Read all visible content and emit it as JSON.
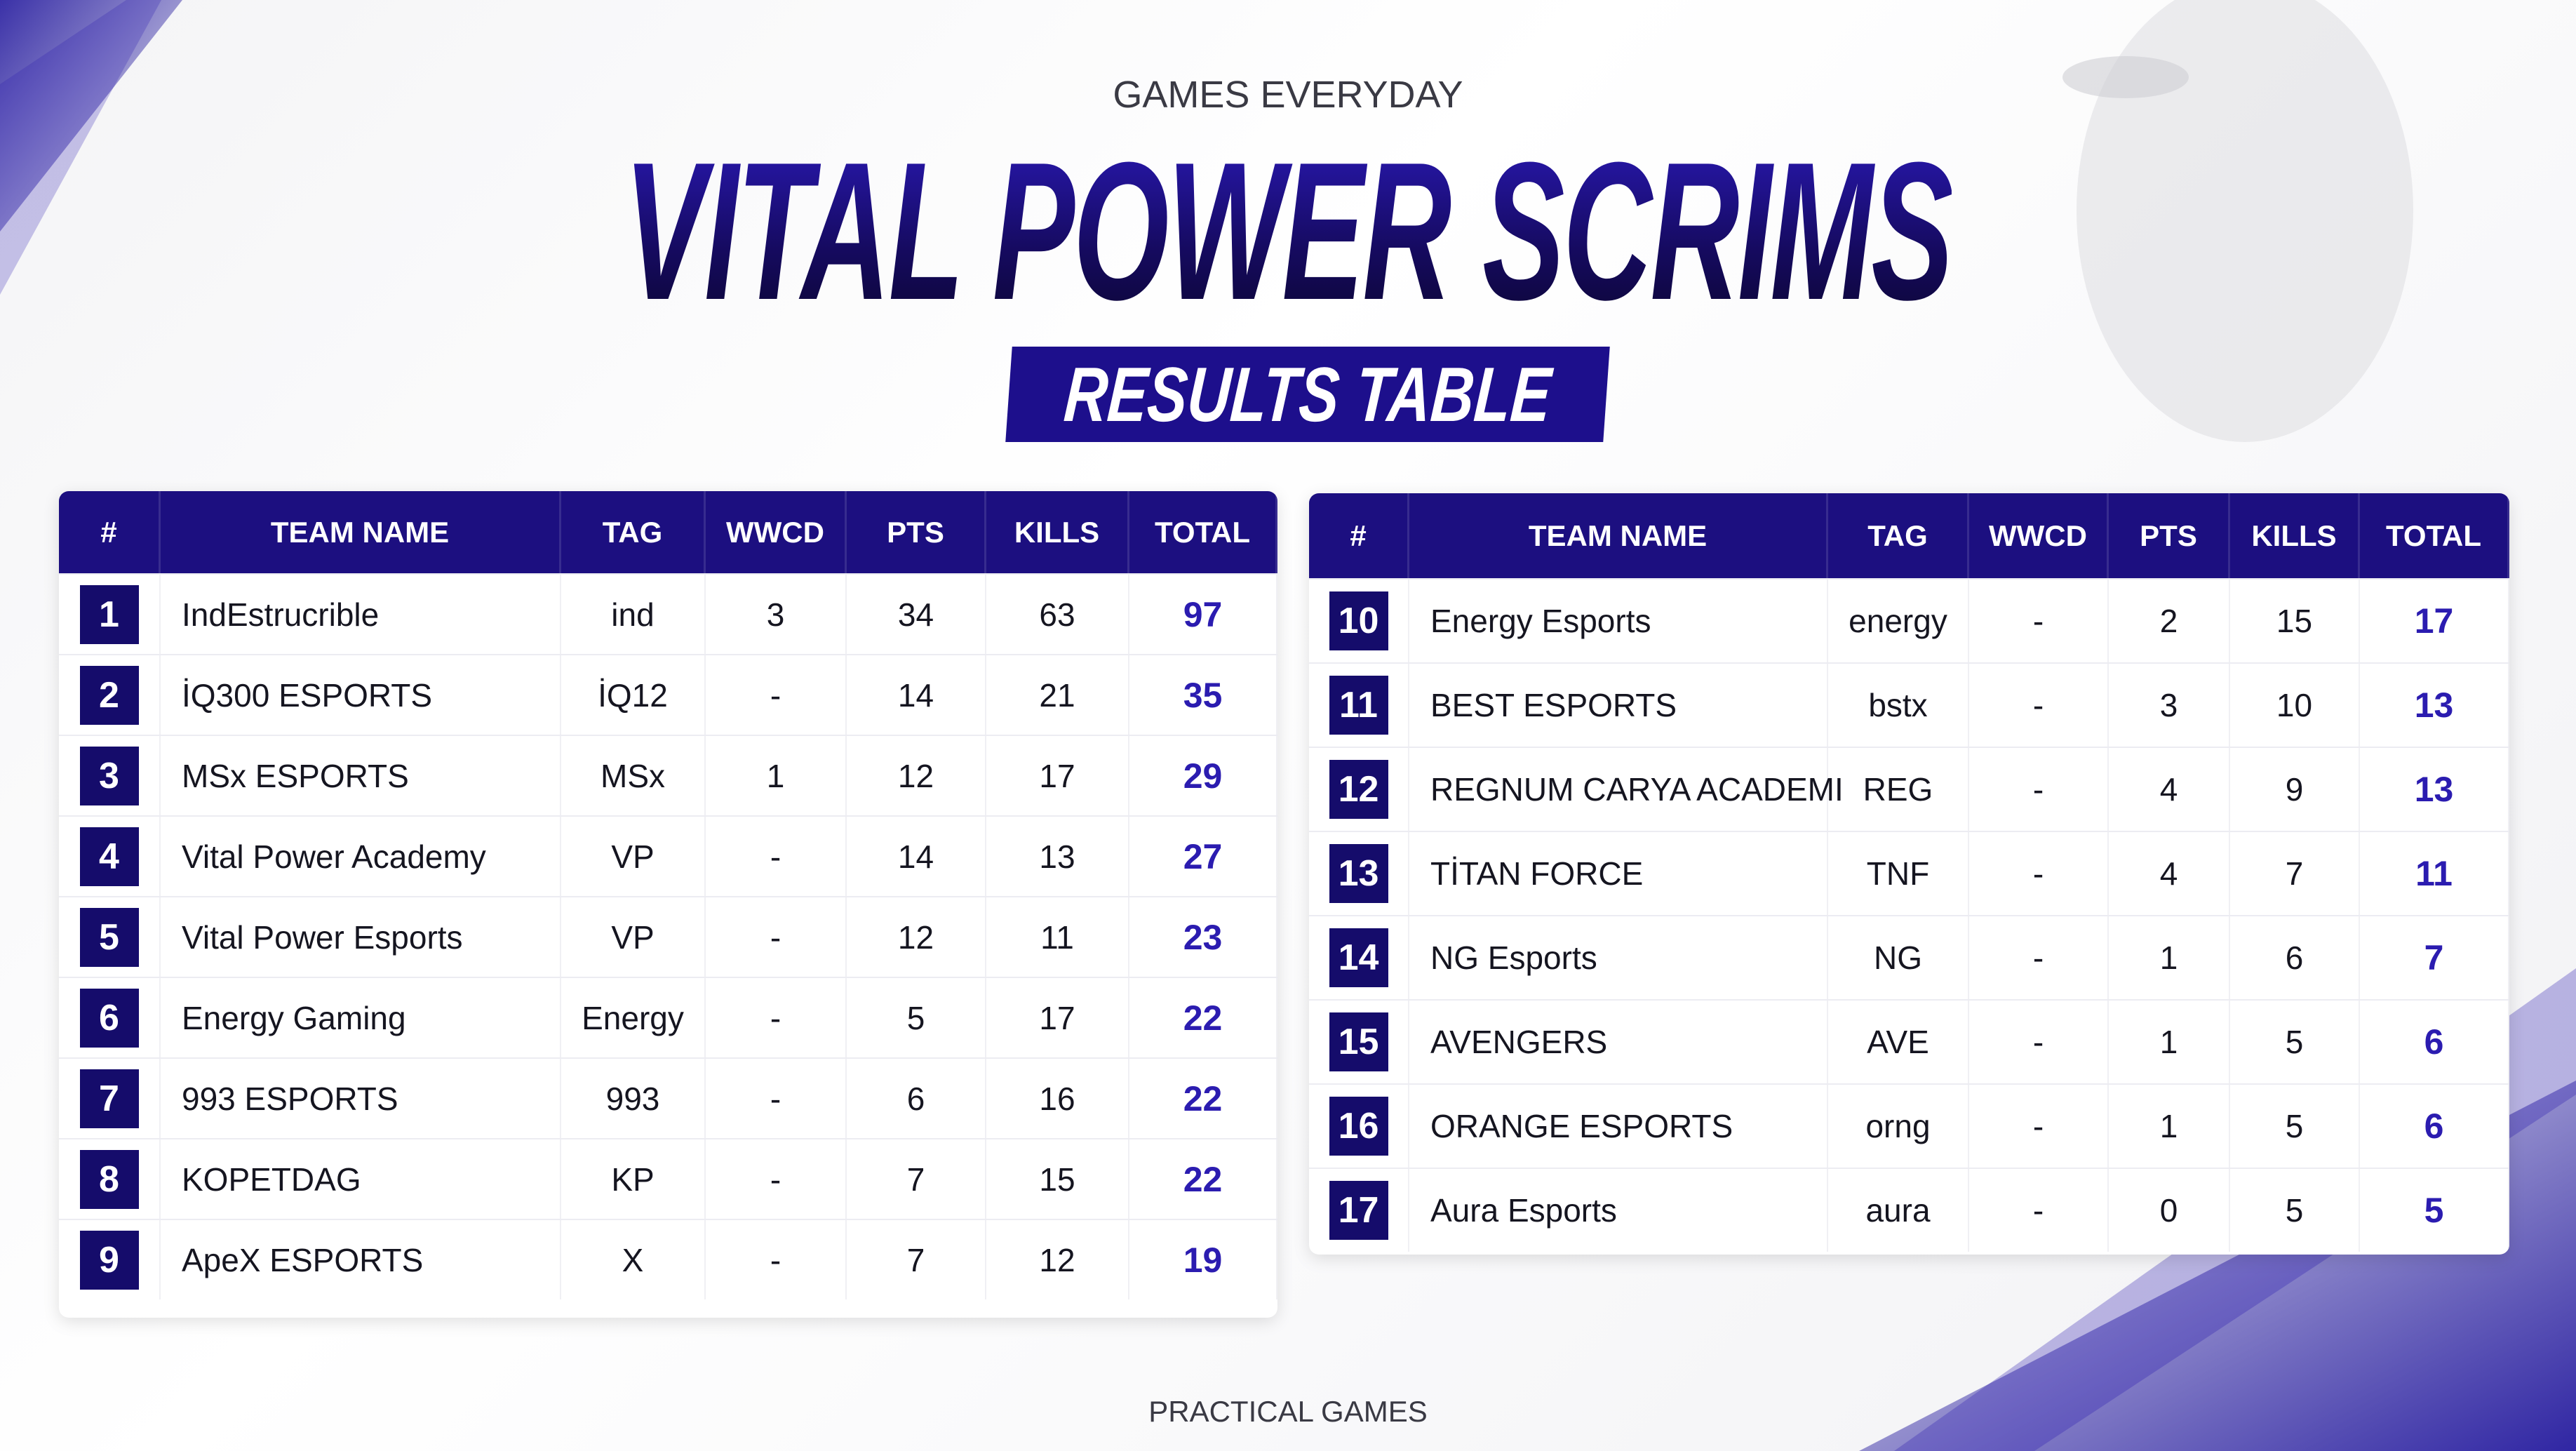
{
  "header": {
    "subtitle": "GAMES EVERYDAY",
    "title": "VITAL POWER SCRIMS",
    "badge": "RESULTS TABLE"
  },
  "tables": [
    {
      "columns": [
        "#",
        "TEAM NAME",
        "TAG",
        "WWCD",
        "PTS",
        "KILLS",
        "TOTAL"
      ],
      "rows": [
        [
          1,
          "IndEstrucrible",
          "ind",
          3,
          34,
          63,
          97
        ],
        [
          2,
          "İQ300 ESPORTS",
          "İQ12",
          "-",
          14,
          21,
          35
        ],
        [
          3,
          "MSx ESPORTS",
          "MSx",
          1,
          12,
          17,
          29
        ],
        [
          4,
          "Vital Power Academy",
          "VP",
          "-",
          14,
          13,
          27
        ],
        [
          5,
          "Vital Power Esports",
          "VP",
          "-",
          12,
          11,
          23
        ],
        [
          6,
          "Energy Gaming",
          "Energy",
          "-",
          5,
          17,
          22
        ],
        [
          7,
          "993 ESPORTS",
          "993",
          "-",
          6,
          16,
          22
        ],
        [
          8,
          "KOPETDAG",
          "KP",
          "-",
          7,
          15,
          22
        ],
        [
          9,
          "ApeX ESPORTS",
          "X",
          "-",
          7,
          12,
          19
        ]
      ]
    },
    {
      "columns": [
        "#",
        "TEAM NAME",
        "TAG",
        "WWCD",
        "PTS",
        "KILLS",
        "TOTAL"
      ],
      "rows": [
        [
          10,
          "Energy Esports",
          "energy",
          "-",
          2,
          15,
          17
        ],
        [
          11,
          "BEST ESPORTS",
          "bstx",
          "-",
          3,
          10,
          13
        ],
        [
          12,
          "REGNUM CARYA ACADEMI",
          "REG",
          "-",
          4,
          9,
          13
        ],
        [
          13,
          "TİTAN FORCE",
          "TNF",
          "-",
          4,
          7,
          11
        ],
        [
          14,
          "NG Esports",
          "NG",
          "-",
          1,
          6,
          7
        ],
        [
          15,
          "AVENGERS",
          "AVE",
          "-",
          1,
          5,
          6
        ],
        [
          16,
          "ORANGE ESPORTS",
          "orng",
          "-",
          1,
          5,
          6
        ],
        [
          17,
          "Aura Esports",
          "aura",
          "-",
          0,
          5,
          5
        ]
      ]
    }
  ],
  "footer": "PRACTICAL GAMES"
}
